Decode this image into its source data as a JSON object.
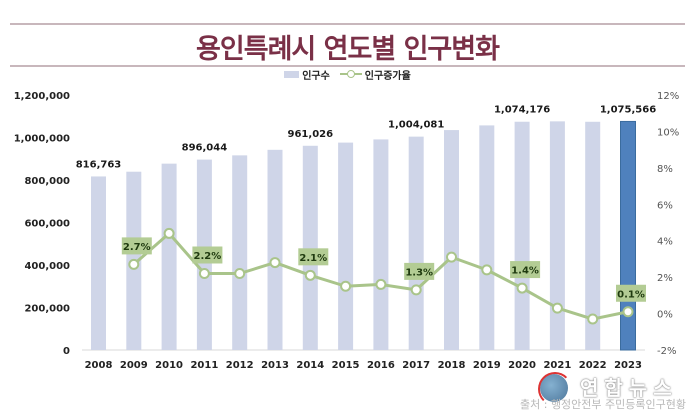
{
  "header": {
    "title": "용인특례시 연도별 인구변화"
  },
  "legend": {
    "items": [
      {
        "label": "인구수",
        "kind": "bar"
      },
      {
        "label": "인구증가율",
        "kind": "line"
      }
    ]
  },
  "colors": {
    "title": "#7a3047",
    "bar": "#cfd5e8",
    "bar_highlight": "#4f81bd",
    "highlight_label": "#4f81bd",
    "line": "#a9c48a",
    "rate_label_bg": "#b3cc94"
  },
  "footer": {
    "source": "출처 : 행정안전부 주민등록인구현황",
    "watermark": "연합뉴스"
  },
  "chart_data": {
    "type": "bar",
    "title": "용인특례시 연도별 인구변화",
    "xlabel": "",
    "ylabel": "",
    "categories": [
      "2008",
      "2009",
      "2010",
      "2011",
      "2012",
      "2013",
      "2014",
      "2015",
      "2016",
      "2017",
      "2018",
      "2019",
      "2020",
      "2021",
      "2022",
      "2023"
    ],
    "series": [
      {
        "name": "인구수",
        "type": "bar",
        "axis": "left",
        "values": [
          816763,
          839000,
          877000,
          896044,
          916000,
          942000,
          961026,
          976000,
          991000,
          1004081,
          1035000,
          1057000,
          1074176,
          1076000,
          1074000,
          1075566
        ],
        "labeled_indices": [
          0,
          3,
          6,
          9,
          12,
          15
        ],
        "labels": [
          "816,763",
          "896,044",
          "961,026",
          "1,004,081",
          "1,074,176",
          "1,075,566"
        ],
        "highlight_index": 15
      },
      {
        "name": "인구증가율",
        "type": "line",
        "axis": "right",
        "unit": "%",
        "values": [
          null,
          2.7,
          4.4,
          2.2,
          2.2,
          2.8,
          2.1,
          1.5,
          1.6,
          1.3,
          3.1,
          2.4,
          1.4,
          0.3,
          -0.3,
          0.1
        ],
        "labeled_indices": [
          1,
          3,
          6,
          9,
          12,
          15
        ],
        "labels": [
          "2.7%",
          "2.2%",
          "2.1%",
          "1.3%",
          "1.4%",
          "0.1%"
        ]
      }
    ],
    "left_axis": {
      "ylim": [
        0,
        1200000
      ],
      "ticks": [
        "0",
        "200,000",
        "400,000",
        "600,000",
        "800,000",
        "1,000,000",
        "1,200,000"
      ],
      "tick_values": [
        0,
        200000,
        400000,
        600000,
        800000,
        1000000,
        1200000
      ]
    },
    "right_axis": {
      "ylim": [
        -2,
        12
      ],
      "ticks": [
        "-2%",
        "0%",
        "2%",
        "4%",
        "6%",
        "8%",
        "10%",
        "12%"
      ],
      "tick_values": [
        -2,
        0,
        2,
        4,
        6,
        8,
        10,
        12
      ]
    },
    "legend_position": "top-center",
    "grid": false
  }
}
